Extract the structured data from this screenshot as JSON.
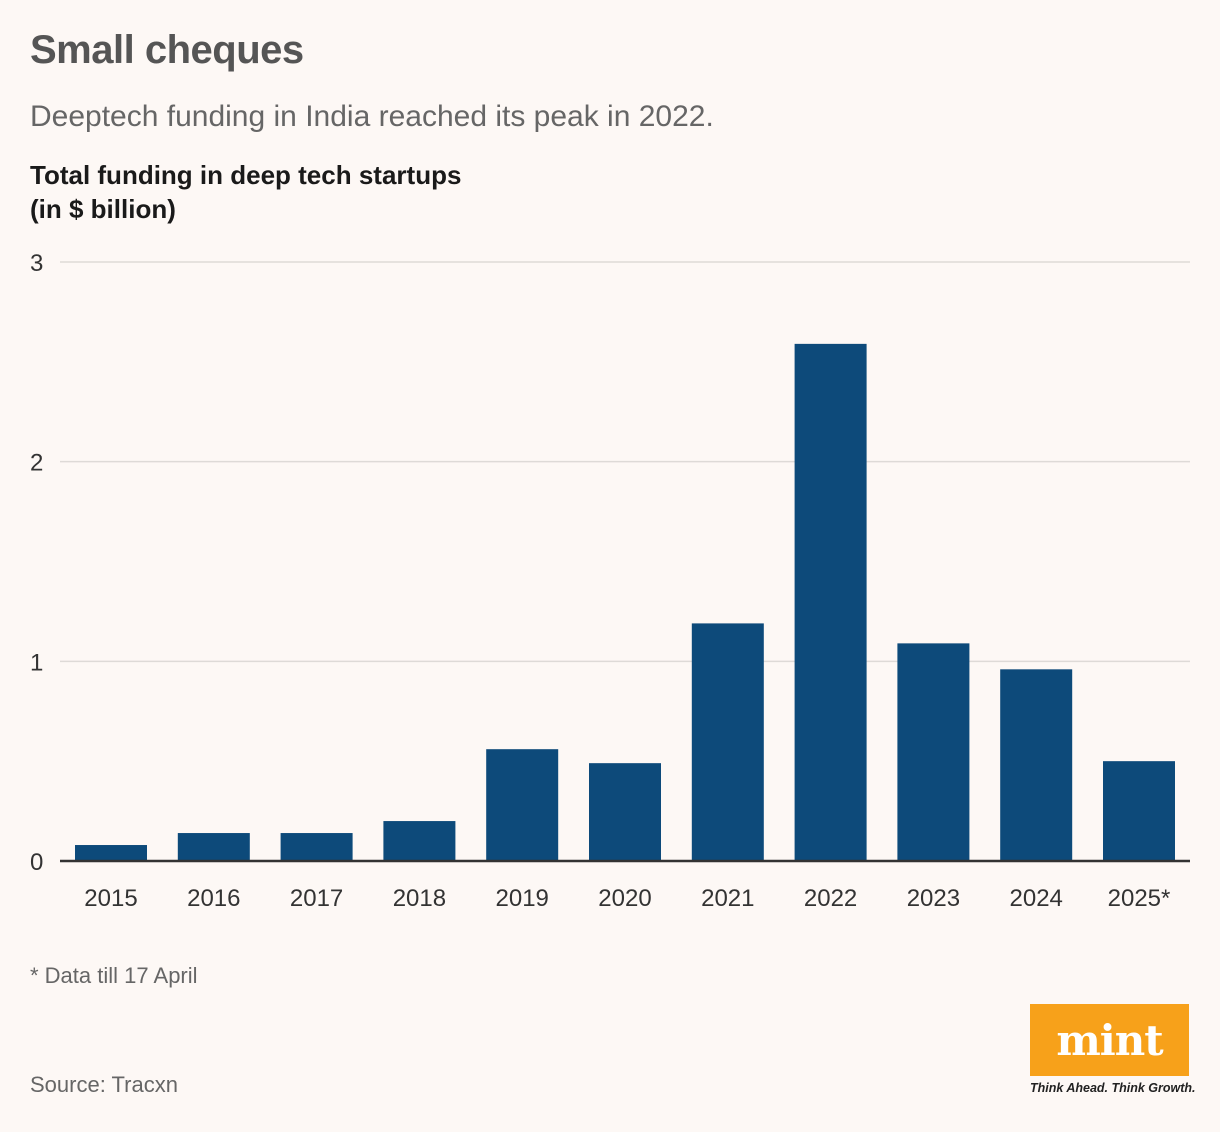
{
  "header": {
    "title": "Small cheques",
    "subtitle": "Deeptech funding in India reached its peak in 2022."
  },
  "chart_data": {
    "type": "bar",
    "title_lines": [
      "Total funding in deep tech startups",
      "(in $ billion)"
    ],
    "categories": [
      "2015",
      "2016",
      "2017",
      "2018",
      "2019",
      "2020",
      "2021",
      "2022",
      "2023",
      "2024",
      "2025*"
    ],
    "values": [
      0.08,
      0.14,
      0.14,
      0.2,
      0.56,
      0.49,
      1.19,
      2.59,
      1.09,
      0.96,
      0.5
    ],
    "ylim": [
      0,
      3
    ],
    "yticks": [
      "0",
      "1",
      "2",
      "3"
    ],
    "grid": true,
    "bar_color": "#0d4a7a"
  },
  "footnote": "* Data till 17 April",
  "source": "Source: Tracxn",
  "logo": {
    "text": "mint",
    "tagline": "Think Ahead. Think Growth.",
    "color": "#f7a11a"
  }
}
